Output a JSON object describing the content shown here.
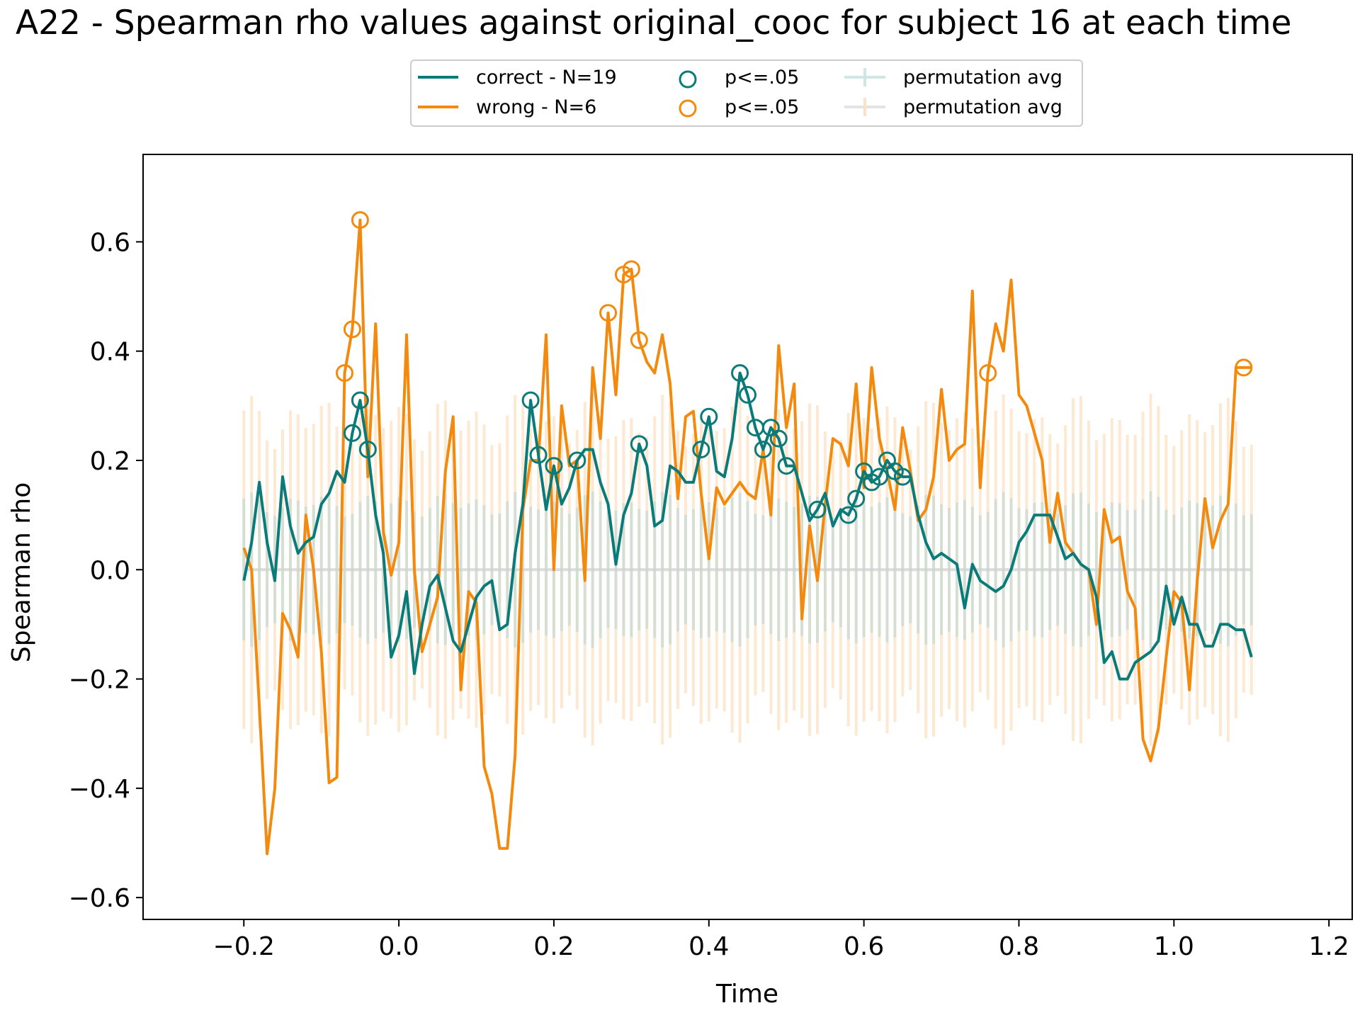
{
  "chart_data": {
    "type": "line",
    "title": "A22 - Spearman rho values against original_cooc for subject 16 at each time",
    "xlabel": "Time",
    "ylabel": "Spearman rho",
    "xlim": [
      -0.33,
      1.23
    ],
    "ylim": [
      -0.64,
      0.76
    ],
    "xticks": [
      -0.2,
      0.0,
      0.2,
      0.4,
      0.6,
      0.8,
      1.0,
      1.2
    ],
    "xtick_labels": [
      "−0.2",
      "0.0",
      "0.2",
      "0.4",
      "0.6",
      "0.8",
      "1.0",
      "1.2"
    ],
    "yticks": [
      -0.6,
      -0.4,
      -0.2,
      0.0,
      0.2,
      0.4,
      0.6
    ],
    "ytick_labels": [
      "−0.6",
      "−0.4",
      "−0.2",
      "0.0",
      "0.2",
      "0.4",
      "0.6"
    ],
    "grid": false,
    "legend_position": "top-center, above plot, 3 columns",
    "legend": {
      "entries": [
        {
          "label": "correct - N=19",
          "kind": "line",
          "color": "#0a7b78"
        },
        {
          "label": "wrong - N=6",
          "kind": "line",
          "color": "#f38a0d"
        },
        {
          "label": "p<=.05",
          "kind": "circle",
          "color": "#0a7b78"
        },
        {
          "label": "p<=.05",
          "kind": "circle",
          "color": "#f38a0d"
        },
        {
          "label": "permutation avg",
          "kind": "errorbar",
          "color": "#a9d3d2"
        },
        {
          "label": "permutation avg",
          "kind": "errorbar",
          "color": "#fcd7ad"
        }
      ]
    },
    "x_start": -0.2,
    "x_end": 1.1,
    "x_step": 0.01,
    "series": [
      {
        "name": "correct - N=19",
        "color": "#0a7b78",
        "keypoints": [
          [
            -0.2,
            -0.02
          ],
          [
            -0.19,
            0.05
          ],
          [
            -0.18,
            0.16
          ],
          [
            -0.17,
            0.05
          ],
          [
            -0.16,
            -0.02
          ],
          [
            -0.15,
            0.17
          ],
          [
            -0.14,
            0.08
          ],
          [
            -0.13,
            0.03
          ],
          [
            -0.12,
            0.05
          ],
          [
            -0.11,
            0.06
          ],
          [
            -0.1,
            0.12
          ],
          [
            -0.09,
            0.14
          ],
          [
            -0.08,
            0.18
          ],
          [
            -0.07,
            0.16
          ],
          [
            -0.06,
            0.25
          ],
          [
            -0.05,
            0.31
          ],
          [
            -0.04,
            0.22
          ],
          [
            -0.03,
            0.1
          ],
          [
            -0.02,
            0.03
          ],
          [
            -0.01,
            -0.16
          ],
          [
            0.0,
            -0.12
          ],
          [
            0.01,
            -0.04
          ],
          [
            0.02,
            -0.19
          ],
          [
            0.03,
            -0.1
          ],
          [
            0.04,
            -0.03
          ],
          [
            0.05,
            -0.01
          ],
          [
            0.06,
            -0.07
          ],
          [
            0.07,
            -0.13
          ],
          [
            0.08,
            -0.15
          ],
          [
            0.09,
            -0.1
          ],
          [
            0.1,
            -0.05
          ],
          [
            0.11,
            -0.03
          ],
          [
            0.12,
            -0.02
          ],
          [
            0.13,
            -0.11
          ],
          [
            0.14,
            -0.1
          ],
          [
            0.15,
            0.03
          ],
          [
            0.16,
            0.12
          ],
          [
            0.17,
            0.31
          ],
          [
            0.18,
            0.21
          ],
          [
            0.19,
            0.11
          ],
          [
            0.2,
            0.19
          ],
          [
            0.21,
            0.12
          ],
          [
            0.22,
            0.15
          ],
          [
            0.23,
            0.2
          ],
          [
            0.24,
            0.22
          ],
          [
            0.25,
            0.22
          ],
          [
            0.26,
            0.16
          ],
          [
            0.27,
            0.12
          ],
          [
            0.28,
            0.01
          ],
          [
            0.29,
            0.1
          ],
          [
            0.3,
            0.14
          ],
          [
            0.31,
            0.23
          ],
          [
            0.32,
            0.19
          ],
          [
            0.33,
            0.08
          ],
          [
            0.34,
            0.09
          ],
          [
            0.35,
            0.19
          ],
          [
            0.36,
            0.18
          ],
          [
            0.37,
            0.16
          ],
          [
            0.38,
            0.16
          ],
          [
            0.39,
            0.22
          ],
          [
            0.4,
            0.28
          ],
          [
            0.41,
            0.18
          ],
          [
            0.42,
            0.17
          ],
          [
            0.43,
            0.24
          ],
          [
            0.44,
            0.36
          ],
          [
            0.45,
            0.32
          ],
          [
            0.46,
            0.26
          ],
          [
            0.47,
            0.22
          ],
          [
            0.48,
            0.26
          ],
          [
            0.49,
            0.24
          ],
          [
            0.5,
            0.19
          ],
          [
            0.51,
            0.19
          ],
          [
            0.52,
            0.14
          ],
          [
            0.53,
            0.09
          ],
          [
            0.54,
            0.11
          ],
          [
            0.55,
            0.14
          ],
          [
            0.56,
            0.08
          ],
          [
            0.57,
            0.11
          ],
          [
            0.58,
            0.1
          ],
          [
            0.59,
            0.13
          ],
          [
            0.6,
            0.18
          ],
          [
            0.61,
            0.16
          ],
          [
            0.62,
            0.17
          ],
          [
            0.63,
            0.2
          ],
          [
            0.64,
            0.18
          ],
          [
            0.65,
            0.17
          ],
          [
            0.66,
            0.17
          ],
          [
            0.67,
            0.1
          ],
          [
            0.68,
            0.05
          ],
          [
            0.69,
            0.02
          ],
          [
            0.7,
            0.03
          ],
          [
            0.71,
            0.02
          ],
          [
            0.72,
            0.01
          ],
          [
            0.73,
            -0.07
          ],
          [
            0.74,
            0.01
          ],
          [
            0.75,
            -0.02
          ],
          [
            0.76,
            -0.03
          ],
          [
            0.77,
            -0.04
          ],
          [
            0.78,
            -0.03
          ],
          [
            0.79,
            0.0
          ],
          [
            0.8,
            0.05
          ],
          [
            0.81,
            0.07
          ],
          [
            0.82,
            0.1
          ],
          [
            0.83,
            0.1
          ],
          [
            0.84,
            0.1
          ],
          [
            0.85,
            0.06
          ],
          [
            0.86,
            0.02
          ],
          [
            0.87,
            0.03
          ],
          [
            0.88,
            0.01
          ],
          [
            0.89,
            0.0
          ],
          [
            0.9,
            -0.05
          ],
          [
            0.91,
            -0.17
          ],
          [
            0.92,
            -0.15
          ],
          [
            0.93,
            -0.2
          ],
          [
            0.94,
            -0.2
          ],
          [
            0.95,
            -0.17
          ],
          [
            0.96,
            -0.16
          ],
          [
            0.97,
            -0.15
          ],
          [
            0.98,
            -0.13
          ],
          [
            0.99,
            -0.03
          ],
          [
            1.0,
            -0.1
          ],
          [
            1.01,
            -0.05
          ],
          [
            1.02,
            -0.1
          ],
          [
            1.03,
            -0.1
          ],
          [
            1.04,
            -0.14
          ],
          [
            1.05,
            -0.14
          ],
          [
            1.06,
            -0.1
          ],
          [
            1.07,
            -0.1
          ],
          [
            1.08,
            -0.11
          ],
          [
            1.09,
            -0.11
          ],
          [
            1.1,
            -0.16
          ]
        ],
        "significant_x": [
          -0.06,
          -0.05,
          -0.04,
          0.17,
          0.18,
          0.2,
          0.23,
          0.31,
          0.39,
          0.4,
          0.44,
          0.45,
          0.46,
          0.47,
          0.48,
          0.49,
          0.5,
          0.54,
          0.58,
          0.59,
          0.6,
          0.61,
          0.62,
          0.63,
          0.64,
          0.65
        ]
      },
      {
        "name": "wrong - N=6",
        "color": "#f38a0d",
        "keypoints": [
          [
            -0.2,
            0.04
          ],
          [
            -0.19,
            0.0
          ],
          [
            -0.18,
            -0.25
          ],
          [
            -0.17,
            -0.52
          ],
          [
            -0.16,
            -0.4
          ],
          [
            -0.15,
            -0.08
          ],
          [
            -0.14,
            -0.11
          ],
          [
            -0.13,
            -0.16
          ],
          [
            -0.12,
            0.1
          ],
          [
            -0.11,
            0.0
          ],
          [
            -0.1,
            -0.15
          ],
          [
            -0.09,
            -0.39
          ],
          [
            -0.08,
            -0.38
          ],
          [
            -0.07,
            0.36
          ],
          [
            -0.06,
            0.44
          ],
          [
            -0.05,
            0.64
          ],
          [
            -0.04,
            0.17
          ],
          [
            -0.03,
            0.45
          ],
          [
            -0.02,
            0.07
          ],
          [
            -0.01,
            -0.01
          ],
          [
            0.0,
            0.05
          ],
          [
            0.01,
            0.43
          ],
          [
            0.02,
            0.0
          ],
          [
            0.03,
            -0.15
          ],
          [
            0.04,
            -0.1
          ],
          [
            0.05,
            -0.05
          ],
          [
            0.06,
            0.18
          ],
          [
            0.07,
            0.28
          ],
          [
            0.08,
            -0.22
          ],
          [
            0.09,
            -0.04
          ],
          [
            0.1,
            -0.06
          ],
          [
            0.11,
            -0.36
          ],
          [
            0.12,
            -0.41
          ],
          [
            0.13,
            -0.51
          ],
          [
            0.14,
            -0.51
          ],
          [
            0.15,
            -0.34
          ],
          [
            0.16,
            0.11
          ],
          [
            0.17,
            0.2
          ],
          [
            0.18,
            0.2
          ],
          [
            0.19,
            0.43
          ],
          [
            0.2,
            0.0
          ],
          [
            0.21,
            0.3
          ],
          [
            0.22,
            0.19
          ],
          [
            0.23,
            0.2
          ],
          [
            0.24,
            -0.02
          ],
          [
            0.25,
            0.37
          ],
          [
            0.26,
            0.24
          ],
          [
            0.27,
            0.47
          ],
          [
            0.28,
            0.32
          ],
          [
            0.29,
            0.54
          ],
          [
            0.3,
            0.55
          ],
          [
            0.31,
            0.42
          ],
          [
            0.32,
            0.38
          ],
          [
            0.33,
            0.36
          ],
          [
            0.34,
            0.43
          ],
          [
            0.35,
            0.34
          ],
          [
            0.36,
            0.13
          ],
          [
            0.37,
            0.28
          ],
          [
            0.38,
            0.29
          ],
          [
            0.39,
            0.14
          ],
          [
            0.4,
            0.02
          ],
          [
            0.41,
            0.15
          ],
          [
            0.42,
            0.12
          ],
          [
            0.43,
            0.14
          ],
          [
            0.44,
            0.16
          ],
          [
            0.45,
            0.14
          ],
          [
            0.46,
            0.13
          ],
          [
            0.47,
            0.22
          ],
          [
            0.48,
            0.1
          ],
          [
            0.49,
            0.41
          ],
          [
            0.5,
            0.26
          ],
          [
            0.51,
            0.34
          ],
          [
            0.52,
            -0.09
          ],
          [
            0.53,
            0.08
          ],
          [
            0.54,
            -0.02
          ],
          [
            0.55,
            0.12
          ],
          [
            0.56,
            0.24
          ],
          [
            0.57,
            0.23
          ],
          [
            0.58,
            0.19
          ],
          [
            0.59,
            0.34
          ],
          [
            0.6,
            0.15
          ],
          [
            0.61,
            0.37
          ],
          [
            0.62,
            0.24
          ],
          [
            0.63,
            0.18
          ],
          [
            0.64,
            0.11
          ],
          [
            0.65,
            0.26
          ],
          [
            0.66,
            0.18
          ],
          [
            0.67,
            0.09
          ],
          [
            0.68,
            0.11
          ],
          [
            0.69,
            0.17
          ],
          [
            0.7,
            0.33
          ],
          [
            0.71,
            0.2
          ],
          [
            0.72,
            0.22
          ],
          [
            0.73,
            0.23
          ],
          [
            0.74,
            0.51
          ],
          [
            0.75,
            0.15
          ],
          [
            0.76,
            0.36
          ],
          [
            0.77,
            0.45
          ],
          [
            0.78,
            0.4
          ],
          [
            0.79,
            0.53
          ],
          [
            0.8,
            0.32
          ],
          [
            0.81,
            0.3
          ],
          [
            0.82,
            0.25
          ],
          [
            0.83,
            0.2
          ],
          [
            0.84,
            0.05
          ],
          [
            0.85,
            0.14
          ],
          [
            0.86,
            0.05
          ],
          [
            0.87,
            0.03
          ],
          [
            0.88,
            0.01
          ],
          [
            0.89,
            0.0
          ],
          [
            0.9,
            -0.1
          ],
          [
            0.91,
            0.11
          ],
          [
            0.92,
            0.05
          ],
          [
            0.93,
            0.06
          ],
          [
            0.94,
            -0.04
          ],
          [
            0.95,
            -0.07
          ],
          [
            0.96,
            -0.31
          ],
          [
            0.97,
            -0.35
          ],
          [
            0.98,
            -0.29
          ],
          [
            0.99,
            -0.16
          ],
          [
            1.0,
            -0.04
          ],
          [
            1.01,
            -0.06
          ],
          [
            1.02,
            -0.22
          ],
          [
            1.03,
            -0.02
          ],
          [
            1.04,
            0.13
          ],
          [
            1.05,
            0.04
          ],
          [
            1.06,
            0.09
          ],
          [
            1.07,
            0.12
          ],
          [
            1.08,
            0.37
          ],
          [
            1.09,
            0.37
          ],
          [
            1.1,
            0.37
          ]
        ],
        "significant_x": [
          -0.07,
          -0.06,
          -0.05,
          0.27,
          0.29,
          0.3,
          0.31,
          0.76,
          1.09
        ]
      }
    ],
    "permutation": [
      {
        "name": "permutation avg",
        "color": "#a9d3d2",
        "mean": 0.0,
        "halfwidth": 0.12
      },
      {
        "name": "permutation avg",
        "color": "#fcd7ad",
        "mean": 0.0,
        "halfwidth": 0.27
      }
    ]
  }
}
